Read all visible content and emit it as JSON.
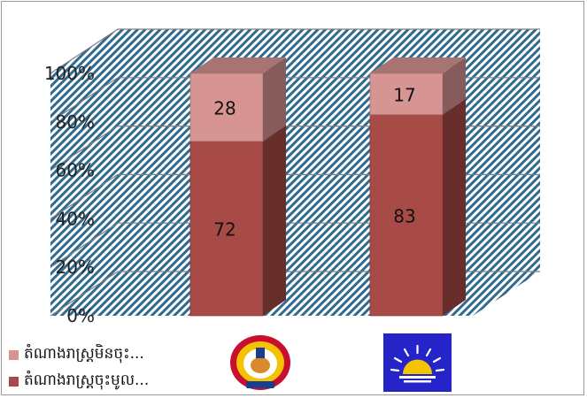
{
  "chart_data": {
    "type": "bar",
    "subtype": "stacked-percent-3d",
    "categories": [
      "",
      ""
    ],
    "category_logos": [
      "party-emblem-logo",
      "rising-sun-logo"
    ],
    "series": [
      {
        "name": "តំណាងរាស្ត្រចុះមូល...",
        "values": [
          72,
          83
        ],
        "color": "#A84A45"
      },
      {
        "name": "តំណាងរាស្ត្រមិនចុះ...",
        "values": [
          28,
          17
        ],
        "color": "#D69593"
      }
    ],
    "ylim": [
      0,
      100
    ],
    "yticks": [
      "0%",
      "20%",
      "40%",
      "60%",
      "80%",
      "100%"
    ],
    "data_labels": true,
    "grid": true,
    "legend_position": "bottom-left",
    "wall_background": "diagonal-hatch-blue"
  },
  "legend": [
    {
      "label": "តំណាងរាស្ត្រមិនចុះ...",
      "color": "#D69593"
    },
    {
      "label": "តំណាងរាស្ត្រចុះមូល...",
      "color": "#A84A45"
    }
  ]
}
